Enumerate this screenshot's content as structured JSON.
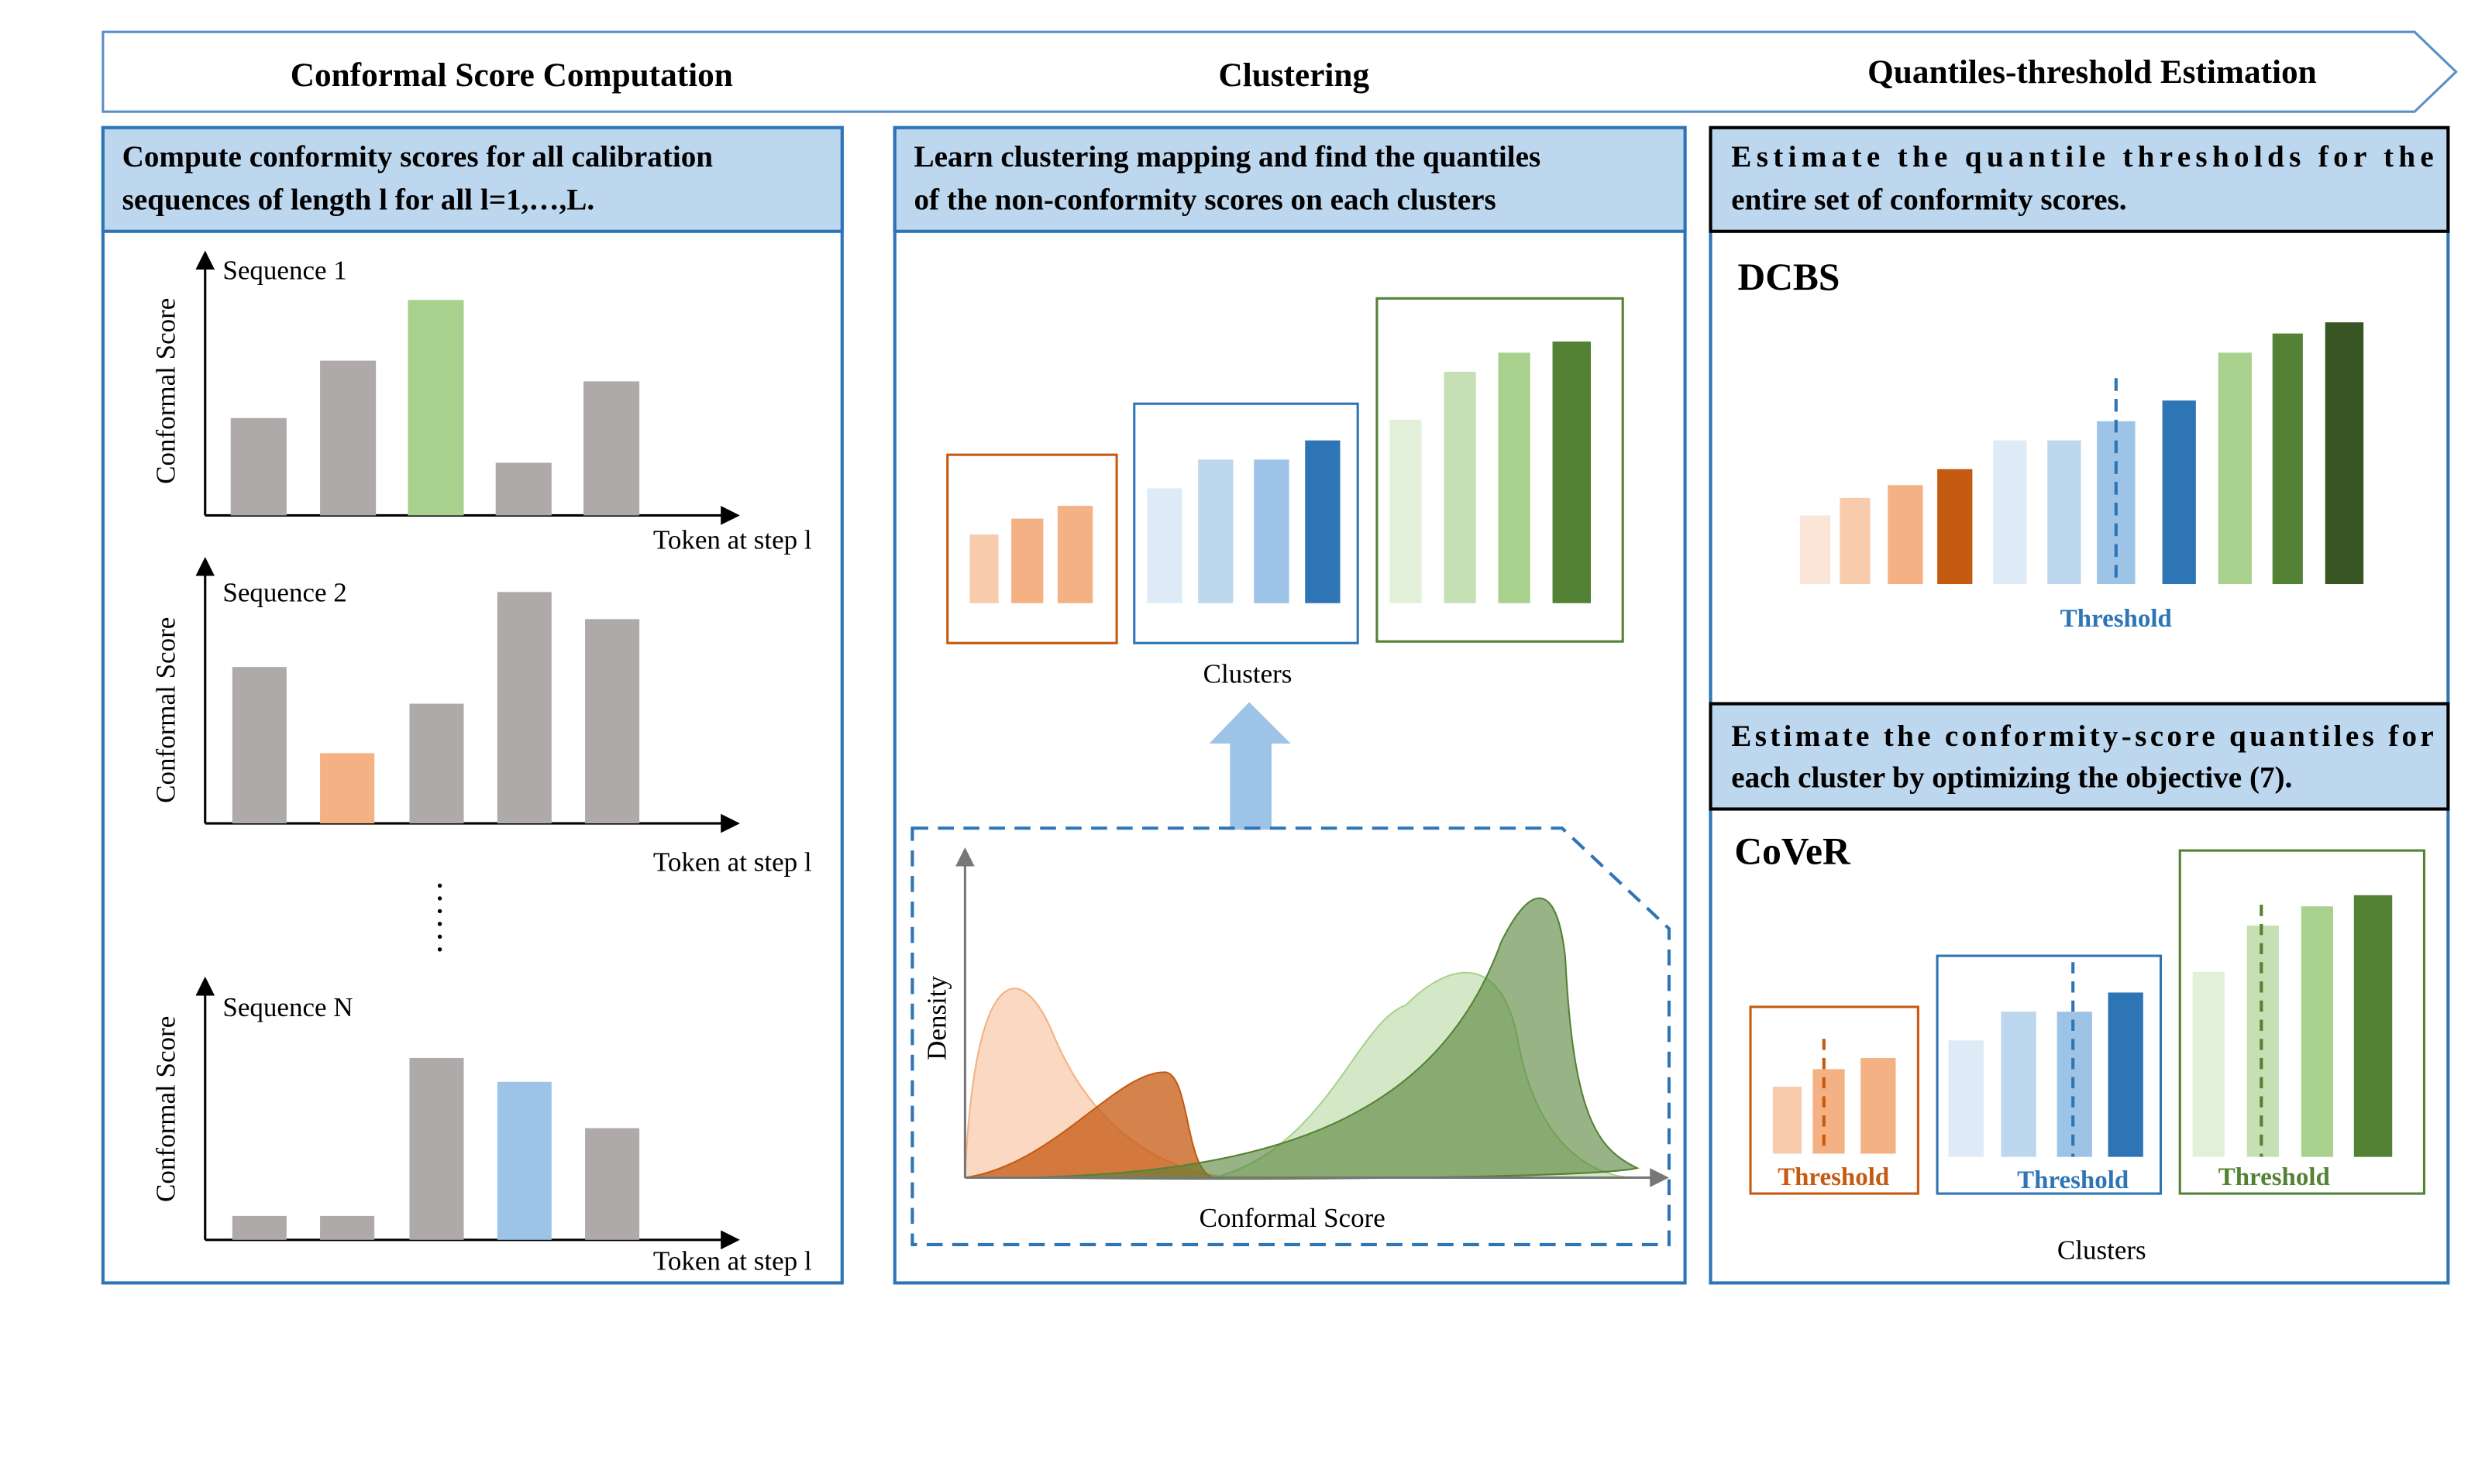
{
  "header": {
    "stages": [
      "Conformal Score Computation",
      "Clustering",
      "Quantiles-threshold Estimation"
    ]
  },
  "panels": [
    {
      "heading": [
        "Compute conformity scores for all calibration",
        "sequences of length l for all l=1,…,L."
      ],
      "y_label": "Conformal Score",
      "x_label": "Token at step l",
      "sequences": [
        "Sequence 1",
        "Sequence 2",
        "Sequence N"
      ]
    },
    {
      "heading": [
        "Learn clustering mapping and find the quantiles",
        "of the non-conformity scores on each clusters"
      ],
      "clusters_label": "Clusters",
      "density_label": "Density",
      "x_label": "Conformal Score"
    },
    {
      "heading": [
        "Estimate the quantile thresholds for the",
        "entire set of conformity scores."
      ],
      "method": "DCBS",
      "threshold": "Threshold",
      "heading2": [
        "Estimate the conformity-score quantiles for",
        "each cluster by optimizing the objective (7)."
      ],
      "method2": "CoVeR",
      "cluster_thresholds": [
        "Threshold",
        "Threshold",
        "Threshold"
      ],
      "clusters_label": "Clusters"
    }
  ]
}
